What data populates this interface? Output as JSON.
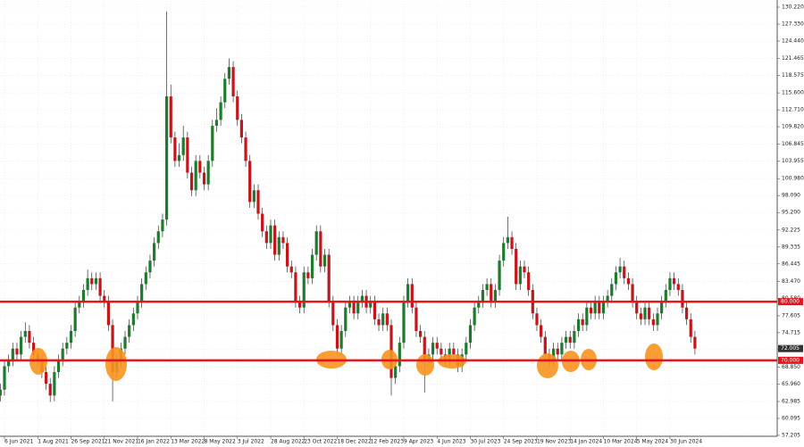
{
  "chart_data": {
    "type": "candlestick",
    "categories": [
      null,
      "6 Jun 2021",
      null,
      null,
      null,
      null,
      null,
      null,
      null,
      "1 Aug 2021",
      null,
      null,
      null,
      null,
      null,
      null,
      null,
      "26 Sep 2021",
      null,
      null,
      null,
      null,
      null,
      null,
      null,
      "21 Nov 2021",
      null,
      null,
      null,
      null,
      null,
      null,
      null,
      "16 Jan 2022",
      null,
      null,
      null,
      null,
      null,
      null,
      null,
      "13 Mar 2022",
      null,
      null,
      null,
      null,
      null,
      null,
      null,
      "8 May 2022",
      null,
      null,
      null,
      null,
      null,
      null,
      null,
      "3 Jul 2022",
      null,
      null,
      null,
      null,
      null,
      null,
      null,
      "28 Aug 2022",
      null,
      null,
      null,
      null,
      null,
      null,
      null,
      "23 Oct 2022",
      null,
      null,
      null,
      null,
      null,
      null,
      null,
      "18 Dec 2022",
      null,
      null,
      null,
      null,
      null,
      null,
      null,
      "12 Feb 2023",
      null,
      null,
      null,
      null,
      null,
      null,
      null,
      "9 Apr 2023",
      null,
      null,
      null,
      null,
      null,
      null,
      null,
      "4 Jun 2023",
      null,
      null,
      null,
      null,
      null,
      null,
      null,
      "30 Jul 2023",
      null,
      null,
      null,
      null,
      null,
      null,
      null,
      "24 Sep 2023",
      null,
      null,
      null,
      null,
      null,
      null,
      null,
      "19 Nov 2023",
      null,
      null,
      null,
      null,
      null,
      null,
      null,
      "14 Jan 2024",
      null,
      null,
      null,
      null,
      null,
      null,
      null,
      "10 Mar 2024",
      null,
      null,
      null,
      null,
      null,
      null,
      null,
      "5 May 2024",
      null,
      null,
      null,
      null,
      null,
      null,
      null,
      "30 Jun 2024",
      null,
      null,
      null,
      null,
      null,
      null
    ],
    "open": [
      64,
      65,
      69,
      70,
      72,
      71,
      74,
      75,
      73,
      71,
      70,
      68,
      66,
      64,
      68,
      70,
      72,
      73,
      75,
      79,
      80,
      82,
      84,
      83,
      84,
      81,
      80,
      76,
      68,
      70,
      72,
      74,
      76,
      78,
      80,
      83,
      85,
      87,
      90,
      92,
      94,
      115,
      108,
      104,
      105,
      108,
      102,
      99,
      104,
      102,
      100,
      104,
      110,
      111,
      114,
      118,
      120,
      115,
      111,
      108,
      104,
      97,
      99,
      95,
      92,
      90,
      93,
      88,
      91,
      90,
      86,
      85,
      80,
      79,
      85,
      84,
      88,
      92,
      86,
      88,
      80,
      76,
      72,
      75,
      79,
      80,
      78,
      80,
      81,
      79,
      80,
      77,
      76,
      78,
      76,
      67,
      69,
      73,
      80,
      83,
      79,
      75,
      74,
      70,
      71,
      73,
      72,
      71,
      70,
      72,
      71,
      69,
      71,
      73,
      76,
      79,
      80,
      82,
      83,
      80,
      82,
      87,
      90,
      91,
      89,
      83,
      86,
      85,
      82,
      78,
      76,
      74,
      71,
      70,
      72,
      71,
      73,
      74,
      73,
      75,
      77,
      76,
      79,
      78,
      80,
      78,
      80,
      81,
      83,
      85,
      86,
      84,
      83,
      80,
      78,
      77,
      79,
      77,
      76,
      78,
      80,
      82,
      84,
      83,
      82,
      79,
      77,
      74
    ],
    "high": [
      66,
      70,
      71,
      73,
      73,
      75,
      76.5,
      76,
      74,
      72,
      71,
      69,
      67,
      69,
      71,
      73,
      74,
      76,
      80,
      81,
      83,
      85.5,
      85,
      85,
      85,
      82,
      81,
      77,
      71,
      73,
      75,
      77,
      79,
      81,
      84,
      86,
      88,
      91,
      93,
      95,
      129.5,
      117,
      109,
      107,
      110,
      109,
      103,
      105,
      105,
      103,
      105,
      111,
      113,
      115,
      119,
      121.5,
      121,
      116,
      112,
      109,
      105,
      100,
      100,
      96,
      93,
      94,
      94,
      92,
      92,
      91,
      87,
      86,
      81,
      86,
      86,
      89,
      93,
      93,
      89,
      89,
      81,
      77,
      76,
      80,
      81,
      81,
      81,
      82,
      82,
      81,
      81,
      78,
      79,
      79,
      77,
      70,
      74,
      81,
      84,
      84,
      80,
      76,
      75,
      72,
      74,
      74,
      73,
      72,
      73,
      73,
      72,
      72,
      74,
      77,
      80,
      81,
      83,
      84,
      84,
      83,
      88,
      91,
      94.5,
      92,
      90,
      87,
      87,
      86,
      83,
      79,
      77,
      75,
      72,
      73,
      73,
      74,
      75,
      75,
      76,
      78,
      78,
      80,
      80,
      81,
      81,
      81,
      82,
      84,
      86,
      87.5,
      87,
      85,
      84,
      81,
      79,
      80,
      80,
      78,
      79,
      81,
      83,
      85,
      85,
      84,
      83,
      80,
      78,
      75
    ],
    "low": [
      63,
      64,
      68,
      69,
      70,
      70,
      73,
      72,
      70,
      69,
      67,
      65,
      62.9,
      63,
      67,
      69,
      71,
      72,
      74,
      78,
      79,
      81,
      82,
      82,
      80,
      79,
      75,
      63,
      67,
      69,
      71,
      73,
      75,
      77,
      79,
      82,
      84,
      86,
      89,
      91,
      93,
      107,
      103,
      103,
      104,
      101,
      98,
      98,
      101,
      99,
      99,
      103,
      109,
      110,
      113,
      117,
      114,
      110,
      107,
      103,
      96,
      96,
      94,
      91,
      89,
      89,
      87,
      87,
      89,
      85,
      84,
      79,
      78,
      78,
      83,
      83,
      87,
      85,
      85,
      79,
      75,
      71,
      71,
      74,
      78,
      77,
      77,
      79,
      78,
      78,
      76,
      75,
      75,
      75,
      64,
      66,
      68,
      72,
      79,
      78,
      74,
      73,
      64.5,
      69,
      70,
      71,
      70,
      69,
      69,
      70,
      68,
      68,
      70,
      72,
      75,
      78,
      79,
      81,
      79,
      79,
      81,
      86,
      89,
      88,
      82,
      82,
      84,
      81,
      77,
      75,
      73,
      70,
      69,
      69,
      70,
      70,
      72,
      72,
      72,
      74,
      75,
      75,
      77,
      77,
      77,
      77,
      79,
      80,
      82,
      84,
      83,
      82,
      79,
      77,
      76,
      76,
      76,
      75,
      75,
      77,
      79,
      81,
      82,
      81,
      78,
      76,
      73,
      71
    ],
    "close": [
      65,
      69,
      70,
      72,
      71,
      74,
      75,
      73,
      71,
      70,
      68,
      66,
      64,
      68,
      70,
      72,
      73,
      75,
      79,
      80,
      82,
      84,
      83,
      84,
      81,
      80,
      76,
      68,
      70,
      72,
      74,
      76,
      78,
      80,
      83,
      85,
      87,
      90,
      92,
      94,
      115,
      108,
      104,
      105,
      108,
      102,
      99,
      104,
      102,
      100,
      104,
      110,
      111,
      114,
      118,
      120,
      115,
      111,
      108,
      104,
      97,
      99,
      95,
      92,
      90,
      93,
      88,
      91,
      90,
      86,
      85,
      80,
      79,
      85,
      84,
      88,
      92,
      86,
      88,
      80,
      76,
      72,
      75,
      79,
      80,
      78,
      80,
      81,
      79,
      80,
      77,
      76,
      78,
      76,
      67,
      69,
      73,
      80,
      83,
      79,
      75,
      74,
      70,
      71,
      73,
      72,
      71,
      70,
      72,
      71,
      69,
      71,
      73,
      76,
      79,
      80,
      82,
      83,
      80,
      82,
      87,
      90,
      91,
      89,
      83,
      86,
      85,
      82,
      78,
      76,
      74,
      71,
      70,
      72,
      71,
      73,
      74,
      73,
      75,
      77,
      76,
      79,
      78,
      80,
      78,
      80,
      81,
      83,
      85,
      86,
      84,
      83,
      80,
      78,
      77,
      79,
      77,
      76,
      78,
      80,
      82,
      84,
      83,
      82,
      79,
      77,
      74,
      72.005
    ],
    "colors": {
      "up": "#1f7a2e",
      "down": "#c1161c"
    },
    "ylim": [
      57.05,
      131.285
    ],
    "yticks": [
      {
        "value": 130.22,
        "label": "130.220"
      },
      {
        "value": 127.33,
        "label": "127.330"
      },
      {
        "value": 124.44,
        "label": "124.440"
      },
      {
        "value": 121.465,
        "label": "121.465"
      },
      {
        "value": 118.575,
        "label": "118.575"
      },
      {
        "value": 115.6,
        "label": "115.600"
      },
      {
        "value": 112.71,
        "label": "112.710"
      },
      {
        "value": 109.82,
        "label": "109.820"
      },
      {
        "value": 106.845,
        "label": "106.845"
      },
      {
        "value": 103.955,
        "label": "103.955"
      },
      {
        "value": 100.98,
        "label": "100.980"
      },
      {
        "value": 98.09,
        "label": "98.090"
      },
      {
        "value": 95.2,
        "label": "95.200"
      },
      {
        "value": 92.225,
        "label": "92.225"
      },
      {
        "value": 89.335,
        "label": "89.335"
      },
      {
        "value": 86.445,
        "label": "86.445"
      },
      {
        "value": 83.47,
        "label": "83.470"
      },
      {
        "value": 80.58,
        "label": "80.580"
      },
      {
        "value": 77.605,
        "label": "77.605"
      },
      {
        "value": 74.715,
        "label": "74.715"
      },
      {
        "value": 71.825,
        "label": "71.825"
      },
      {
        "value": 68.85,
        "label": "68.850"
      },
      {
        "value": 65.96,
        "label": "65.960"
      },
      {
        "value": 62.985,
        "label": "62.985"
      },
      {
        "value": 60.095,
        "label": "60.095"
      },
      {
        "value": 57.205,
        "label": "57.205"
      }
    ],
    "grid": true,
    "hlines": [
      {
        "value": 80,
        "label": "80.000",
        "color": "#e8141c"
      },
      {
        "value": 70,
        "label": "70.000",
        "color": "#e8141c"
      }
    ],
    "last_price": {
      "value": 72.005,
      "label": "72.005"
    }
  }
}
